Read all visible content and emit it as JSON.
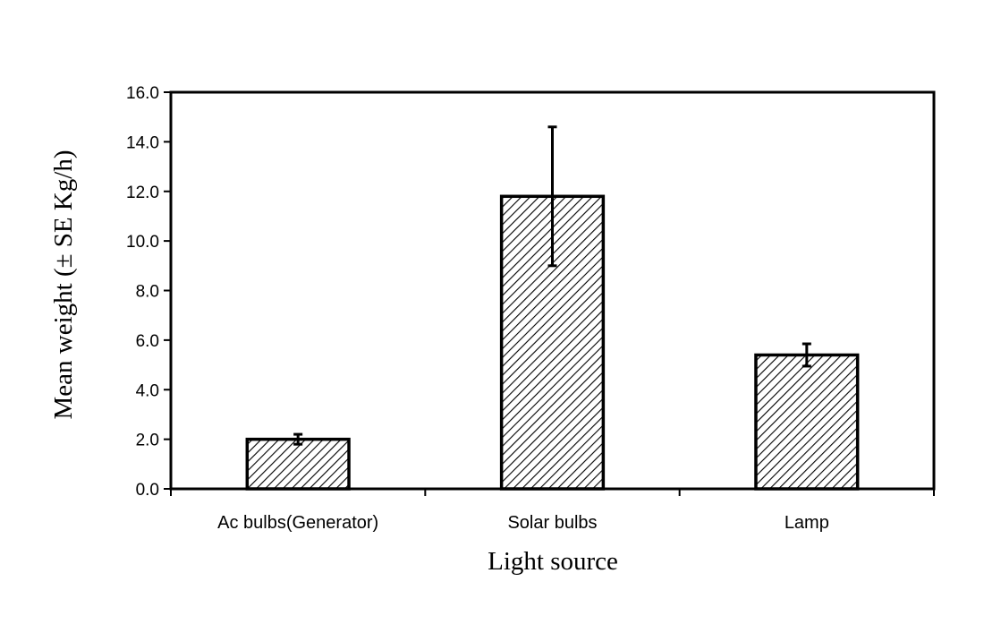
{
  "chart_data": {
    "type": "bar",
    "title": "",
    "xlabel": "Light source",
    "ylabel": "Mean weight (± SE Kg/h)",
    "categories": [
      "Ac bulbs(Generator)",
      "Solar bulbs",
      "Lamp"
    ],
    "values": [
      2.0,
      11.8,
      5.4
    ],
    "errors": [
      0.2,
      2.8,
      0.45
    ],
    "ylim": [
      0,
      16
    ],
    "yticks": [
      0,
      2,
      4,
      6,
      8,
      10,
      12,
      14,
      16
    ],
    "ytick_labels": [
      "0.0",
      "2.0",
      "4.0",
      "6.0",
      "8.0",
      "10.0",
      "12.0",
      "14.0",
      "16.0"
    ],
    "grid": false,
    "bar_fill": "diagonal-hatch",
    "bar_color": "#000000",
    "background": "#ffffff"
  }
}
